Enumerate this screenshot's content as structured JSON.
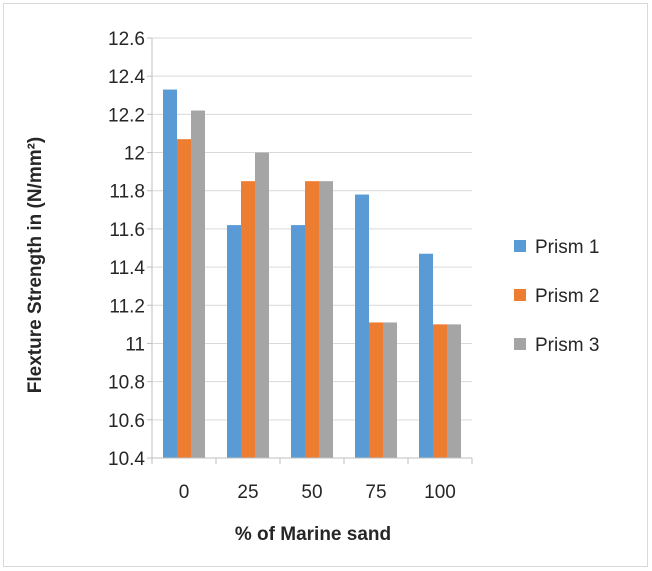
{
  "chart_data": {
    "type": "bar",
    "categories": [
      "0",
      "25",
      "50",
      "75",
      "100"
    ],
    "series": [
      {
        "name": "Prism 1",
        "color": "#5b9bd5",
        "values": [
          12.33,
          11.62,
          11.62,
          11.78,
          11.47
        ]
      },
      {
        "name": "Prism 2",
        "color": "#ed7d31",
        "values": [
          12.07,
          11.85,
          11.85,
          11.11,
          11.1
        ]
      },
      {
        "name": "Prism 3",
        "color": "#a5a5a5",
        "values": [
          12.22,
          12.0,
          11.85,
          11.11,
          11.1
        ]
      }
    ],
    "xlabel": "% of Marine sand",
    "ylabel": "Flexture Strength in (N/mm²)",
    "ylim": [
      10.4,
      12.6
    ],
    "yticks": [
      "10.4",
      "10.6",
      "10.8",
      "11",
      "11.2",
      "11.4",
      "11.6",
      "11.8",
      "12",
      "12.2",
      "12.4",
      "12.6"
    ],
    "grid": true,
    "legend_position": "right"
  }
}
